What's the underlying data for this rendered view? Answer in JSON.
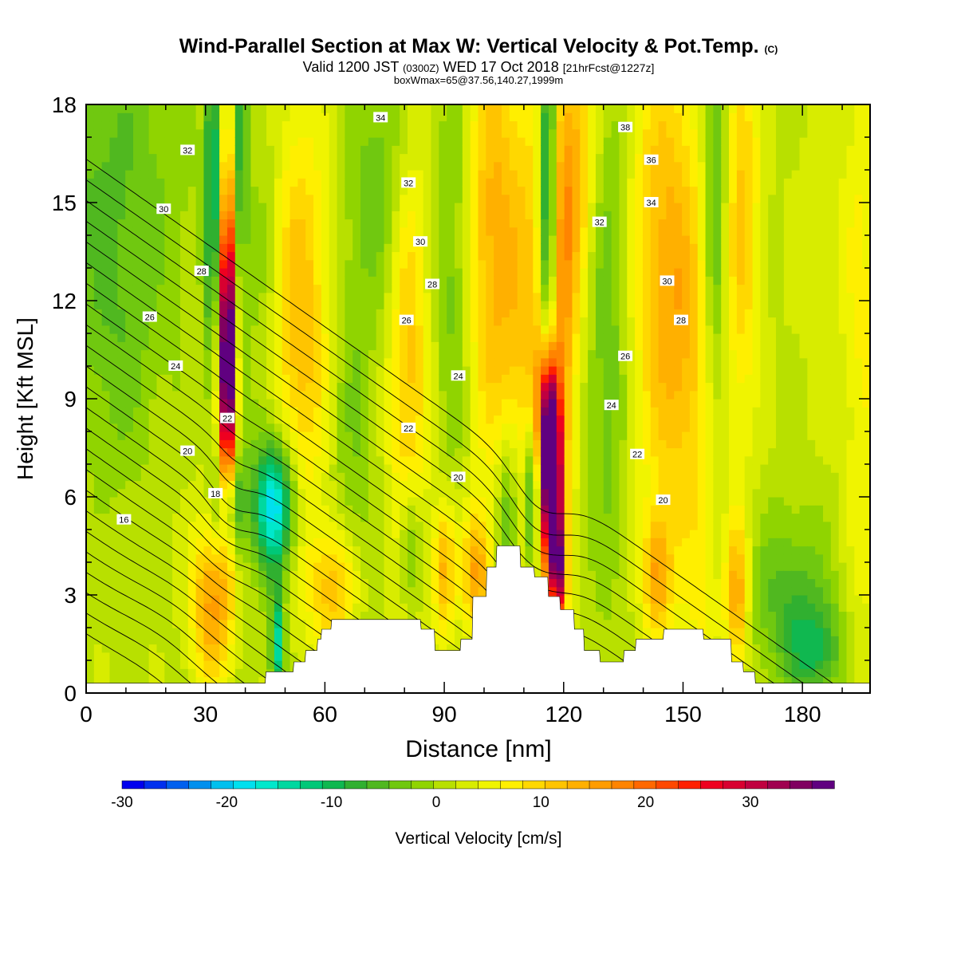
{
  "title": "Wind-Parallel Section at Max W: Vertical Velocity & Pot.Temp.",
  "title_suffix": "(C)",
  "subtitle_parts": [
    "Valid 1200 JST",
    "(0300Z)",
    "WED 17 Oct 2018",
    "[21hrFcst@1227z]"
  ],
  "subtitle2": "boxWmax=65@37.56,140.27,1999m",
  "chart_data": {
    "type": "heatmap",
    "xlabel": "Distance [nm]",
    "ylabel": "Height [Kft MSL]",
    "xlim": [
      0,
      197
    ],
    "ylim": [
      0,
      18
    ],
    "x_ticks": [
      "0",
      "30",
      "60",
      "90",
      "120",
      "150",
      "180"
    ],
    "y_ticks": [
      "0",
      "3",
      "6",
      "9",
      "12",
      "15",
      "18"
    ],
    "colorbar": {
      "label": "Vertical Velocity [cm/s]",
      "range": [
        -30,
        38
      ],
      "ticks": [
        "-30",
        "-20",
        "-10",
        "0",
        "10",
        "20",
        "30"
      ],
      "colors": [
        "#0000ee",
        "#0030ee",
        "#0060ee",
        "#0090ee",
        "#00c0ee",
        "#00e0ee",
        "#00e8cc",
        "#00d8a0",
        "#00c878",
        "#10b850",
        "#30b030",
        "#50b820",
        "#70c810",
        "#90d400",
        "#b8e000",
        "#d8ec00",
        "#f0f400",
        "#ffef00",
        "#ffd800",
        "#ffc400",
        "#ffb000",
        "#ff9c00",
        "#ff8400",
        "#ff6800",
        "#ff4800",
        "#ff2000",
        "#ee0020",
        "#d80030",
        "#c00040",
        "#a00050",
        "#800060",
        "#600080"
      ]
    },
    "terrain_kft": [
      [
        0,
        0.3
      ],
      [
        45,
        0.3
      ],
      [
        45.2,
        0.65
      ],
      [
        52,
        0.65
      ],
      [
        52.2,
        0.95
      ],
      [
        55,
        0.95
      ],
      [
        55.2,
        1.3
      ],
      [
        58,
        1.3
      ],
      [
        58.2,
        1.65
      ],
      [
        59,
        1.65
      ],
      [
        59.2,
        1.95
      ],
      [
        61.5,
        1.95
      ],
      [
        61.7,
        2.25
      ],
      [
        84,
        2.25
      ],
      [
        84.2,
        1.95
      ],
      [
        87.5,
        1.95
      ],
      [
        87.7,
        1.3
      ],
      [
        94,
        1.3
      ],
      [
        94.2,
        1.65
      ],
      [
        97,
        1.65
      ],
      [
        97.2,
        2.95
      ],
      [
        100.5,
        2.95
      ],
      [
        100.7,
        3.85
      ],
      [
        103,
        3.85
      ],
      [
        103.2,
        4.5
      ],
      [
        109,
        4.5
      ],
      [
        109.2,
        3.85
      ],
      [
        112.5,
        3.85
      ],
      [
        112.7,
        3.55
      ],
      [
        116,
        3.55
      ],
      [
        116.2,
        2.95
      ],
      [
        119,
        2.95
      ],
      [
        119.2,
        2.55
      ],
      [
        122.5,
        2.55
      ],
      [
        122.7,
        1.95
      ],
      [
        125,
        1.95
      ],
      [
        125.2,
        1.3
      ],
      [
        129,
        1.3
      ],
      [
        129.2,
        0.95
      ],
      [
        135,
        0.95
      ],
      [
        135.2,
        1.3
      ],
      [
        138,
        1.3
      ],
      [
        138.2,
        1.65
      ],
      [
        145,
        1.65
      ],
      [
        145.2,
        1.95
      ],
      [
        155,
        1.95
      ],
      [
        155.2,
        1.65
      ],
      [
        162,
        1.65
      ],
      [
        162.2,
        0.95
      ],
      [
        165,
        0.95
      ],
      [
        165.2,
        0.65
      ],
      [
        168,
        0.65
      ],
      [
        168.2,
        0.3
      ],
      [
        197,
        0.3
      ]
    ],
    "w_features": [
      {
        "x": 35.5,
        "z": 10.0,
        "sx": 1.5,
        "sz": 3.2,
        "w": 40
      },
      {
        "x": 36.0,
        "z": 13.5,
        "sx": 1.6,
        "sz": 4.5,
        "w": 9
      },
      {
        "x": 31.5,
        "z": 2.8,
        "sx": 3.5,
        "sz": 1.8,
        "w": 14
      },
      {
        "x": 31.8,
        "z": 15.5,
        "sx": 1.3,
        "sz": 4.0,
        "w": -14
      },
      {
        "x": 38.5,
        "z": 15.5,
        "sx": 1.3,
        "sz": 4.0,
        "w": -11
      },
      {
        "x": 36.0,
        "z": 5.8,
        "sx": 2.5,
        "sz": 1.2,
        "w": -16
      },
      {
        "x": 47.5,
        "z": 5.7,
        "sx": 3.5,
        "sz": 1.4,
        "w": -21
      },
      {
        "x": 48.0,
        "z": 1.5,
        "sx": 1.2,
        "sz": 1.2,
        "w": -16
      },
      {
        "x": 53.5,
        "z": 11.5,
        "sx": 5.5,
        "sz": 4.5,
        "w": 11
      },
      {
        "x": 62.5,
        "z": 3.2,
        "sx": 4.5,
        "sz": 1.3,
        "w": 11
      },
      {
        "x": 45.0,
        "z": 12.0,
        "sx": 3.5,
        "sz": 5.0,
        "w": -4
      },
      {
        "x": 67.0,
        "z": 8.0,
        "sx": 4.0,
        "sz": 6.0,
        "w": -4
      },
      {
        "x": 81.0,
        "z": 10.0,
        "sx": 3.5,
        "sz": 5.0,
        "w": 10
      },
      {
        "x": 81.5,
        "z": 4.5,
        "sx": 2.0,
        "sz": 1.5,
        "w": -9
      },
      {
        "x": 90.0,
        "z": 3.8,
        "sx": 2.0,
        "sz": 1.5,
        "w": 12
      },
      {
        "x": 98.0,
        "z": 3.7,
        "sx": 2.5,
        "sz": 1.3,
        "w": 13
      },
      {
        "x": 102.0,
        "z": 14.0,
        "sx": 4.5,
        "sz": 5.0,
        "w": 11
      },
      {
        "x": 112.0,
        "z": 11.0,
        "sx": 5.0,
        "sz": 6.0,
        "w": 9
      },
      {
        "x": 92.0,
        "z": 13.0,
        "sx": 3.0,
        "sz": 5.0,
        "w": -5
      },
      {
        "x": 106.0,
        "z": 5.5,
        "sx": 2.0,
        "sz": 1.8,
        "w": -10
      },
      {
        "x": 117.0,
        "z": 6.0,
        "sx": 1.7,
        "sz": 1.9,
        "w": 45
      },
      {
        "x": 116.0,
        "z": 8.6,
        "sx": 2.0,
        "sz": 1.5,
        "w": 22
      },
      {
        "x": 119.0,
        "z": 3.6,
        "sx": 1.2,
        "sz": 1.1,
        "w": 22
      },
      {
        "x": 112.0,
        "z": 6.0,
        "sx": 1.5,
        "sz": 1.8,
        "w": -14
      },
      {
        "x": 116.0,
        "z": 15.5,
        "sx": 1.5,
        "sz": 4.5,
        "w": -19
      },
      {
        "x": 120.0,
        "z": 11.5,
        "sx": 2.5,
        "sz": 4.0,
        "w": 10
      },
      {
        "x": 123.0,
        "z": 16.5,
        "sx": 4.0,
        "sz": 3.0,
        "w": 10
      },
      {
        "x": 131.0,
        "z": 11.5,
        "sx": 3.5,
        "sz": 6.0,
        "w": -6
      },
      {
        "x": 145.0,
        "z": 14.0,
        "sx": 6.0,
        "sz": 5.5,
        "w": 9
      },
      {
        "x": 151.0,
        "z": 10.0,
        "sx": 6.0,
        "sz": 4.5,
        "w": 7
      },
      {
        "x": 143.5,
        "z": 3.6,
        "sx": 2.5,
        "sz": 1.3,
        "w": 12
      },
      {
        "x": 155.0,
        "z": 3.0,
        "sx": 3.0,
        "sz": 2.0,
        "w": 4
      },
      {
        "x": 158.0,
        "z": 15.0,
        "sx": 2.0,
        "sz": 5.0,
        "w": -9
      },
      {
        "x": 165.0,
        "z": 15.0,
        "sx": 3.0,
        "sz": 5.0,
        "w": 9
      },
      {
        "x": 163.5,
        "z": 3.0,
        "sx": 2.0,
        "sz": 1.6,
        "w": 13
      },
      {
        "x": 177.0,
        "z": 3.0,
        "sx": 7.0,
        "sz": 1.8,
        "w": -7
      },
      {
        "x": 183.0,
        "z": 1.3,
        "sx": 5.0,
        "sz": 1.0,
        "w": -9
      },
      {
        "x": 5.0,
        "z": 16.0,
        "sx": 14.0,
        "sz": 4.5,
        "w": -6
      },
      {
        "x": 8.0,
        "z": 10.0,
        "sx": 7.0,
        "sz": 3.0,
        "w": -3
      },
      {
        "x": 75.0,
        "z": 16.0,
        "sx": 5.0,
        "sz": 3.0,
        "w": -5
      },
      {
        "x": 195.0,
        "z": 9.0,
        "sx": 3.0,
        "sz": 8.0,
        "w": 4
      },
      {
        "x": 190.0,
        "z": 14.0,
        "sx": 8.0,
        "sz": 4.0,
        "w": 2
      }
    ],
    "isentrope_labels": [
      {
        "text": "34",
        "x": 74.0,
        "z": 17.6
      },
      {
        "text": "38",
        "x": 135.5,
        "z": 17.3
      },
      {
        "text": "32",
        "x": 25.5,
        "z": 16.6
      },
      {
        "text": "36",
        "x": 142.0,
        "z": 16.3
      },
      {
        "text": "32",
        "x": 81.0,
        "z": 15.6
      },
      {
        "text": "30",
        "x": 19.5,
        "z": 14.8
      },
      {
        "text": "34",
        "x": 142.0,
        "z": 15.0
      },
      {
        "text": "32",
        "x": 129.0,
        "z": 14.4
      },
      {
        "text": "30",
        "x": 84.0,
        "z": 13.8
      },
      {
        "text": "28",
        "x": 29.0,
        "z": 12.9
      },
      {
        "text": "28",
        "x": 87.0,
        "z": 12.5
      },
      {
        "text": "30",
        "x": 146.0,
        "z": 12.6
      },
      {
        "text": "26",
        "x": 16.0,
        "z": 11.5
      },
      {
        "text": "26",
        "x": 80.5,
        "z": 11.4
      },
      {
        "text": "28",
        "x": 149.5,
        "z": 11.4
      },
      {
        "text": "26",
        "x": 135.5,
        "z": 10.3
      },
      {
        "text": "24",
        "x": 22.5,
        "z": 10.0
      },
      {
        "text": "24",
        "x": 93.5,
        "z": 9.7
      },
      {
        "text": "24",
        "x": 132.0,
        "z": 8.8
      },
      {
        "text": "22",
        "x": 35.5,
        "z": 8.4
      },
      {
        "text": "22",
        "x": 81.0,
        "z": 8.1
      },
      {
        "text": "20",
        "x": 25.5,
        "z": 7.4
      },
      {
        "text": "22",
        "x": 138.5,
        "z": 7.3
      },
      {
        "text": "20",
        "x": 93.5,
        "z": 6.6
      },
      {
        "text": "18",
        "x": 32.5,
        "z": 6.1
      },
      {
        "text": "20",
        "x": 145.0,
        "z": 5.9
      },
      {
        "text": "16",
        "x": 9.5,
        "z": 5.3
      }
    ],
    "theta_levels": [
      16,
      17,
      18,
      19,
      20,
      21,
      22,
      23,
      24,
      25,
      26,
      27,
      28,
      29,
      30,
      31,
      32,
      33,
      34,
      35,
      36,
      37,
      38,
      39
    ]
  }
}
